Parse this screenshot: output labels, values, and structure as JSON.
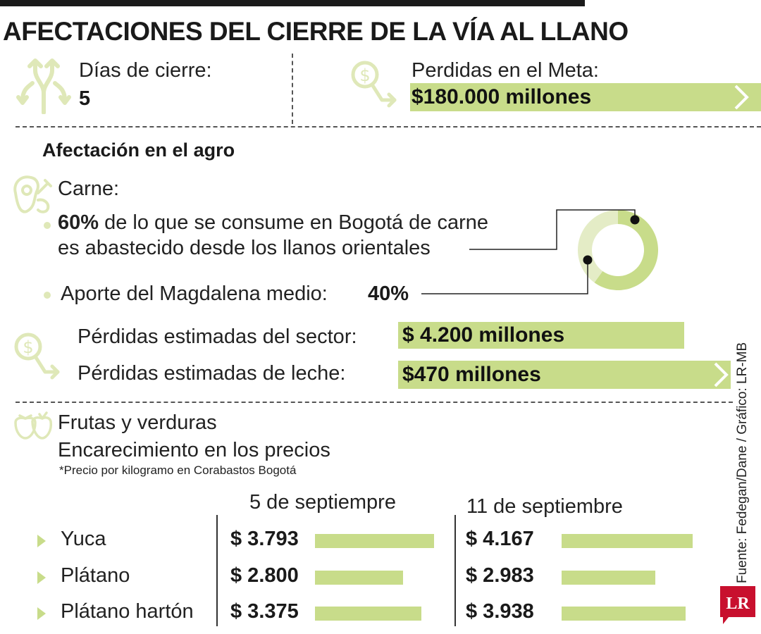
{
  "title": "AFECTACIONES DEL CIERRE DE LA VÍA AL LLANO",
  "summary": {
    "days_label": "Días de cierre:",
    "days_value": "5",
    "losses_label": "Perdidas en el Meta:",
    "losses_value": "$180.000 millones"
  },
  "agro": {
    "heading": "Afectación en el agro",
    "carne_label": "Carne:",
    "bullet1_bold": "60%",
    "bullet1_line1": " de lo que se consume en Bogotá de carne",
    "bullet1_line2": "es abastecido desde los llanos orientales",
    "bullet2_label": "Aporte del Magdalena medio:",
    "bullet2_value": "40%",
    "sector_label": "Pérdidas estimadas del sector:",
    "sector_value": "$ 4.200 millones",
    "leche_label": "Pérdidas estimadas de leche:",
    "leche_value": "$470 millones"
  },
  "frutas": {
    "heading": "Frutas y verduras",
    "subheading": "Encarecimiento en los precios",
    "note": "*Precio por kilogramo en Corabastos Bogotá",
    "col1_header": "5 de septiempre",
    "col2_header": "11 de septiembre"
  },
  "credit": "Fuente: Fedegan/Dane / Gráfico: LR-MB",
  "logo_text": "LR",
  "icons": [
    "road-split-icon",
    "money-down-icon",
    "meat-icon",
    "money-down-icon",
    "fruit-icon"
  ],
  "colors": {
    "accent": "#c8dc8a",
    "donut_light": "#e4ecc6",
    "logo": "#c8102e"
  },
  "chart_data": [
    {
      "type": "pie",
      "categories": [
        "Llanos orientales",
        "Magdalena medio"
      ],
      "values": [
        60,
        40
      ]
    },
    {
      "type": "bar",
      "categories": [
        "Yuca",
        "Plátano",
        "Plátano hartón"
      ],
      "series": [
        {
          "name": "5 de septiempre",
          "values": [
            3793,
            2800,
            3375
          ],
          "labels": [
            "$ 3.793",
            "$ 2.800",
            "$ 3.375"
          ]
        },
        {
          "name": "11 de septiembre",
          "values": [
            4167,
            2983,
            3938
          ],
          "labels": [
            "$ 4.167",
            "$ 2.983",
            "$ 3.938"
          ]
        }
      ]
    }
  ]
}
